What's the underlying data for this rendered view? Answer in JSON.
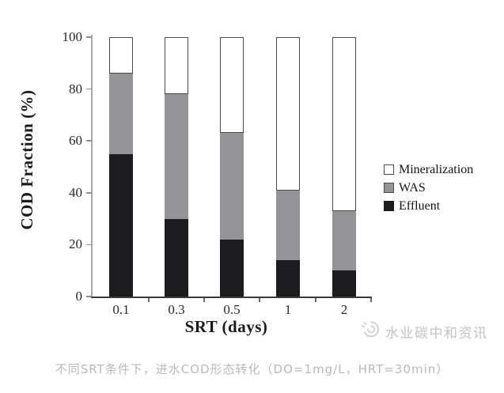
{
  "figure": {
    "background": "#ffffff"
  },
  "chart_data": {
    "type": "bar",
    "stacked": true,
    "title": "",
    "xlabel": "SRT (days)",
    "ylabel": "COD Fraction (%)",
    "categories": [
      "0.1",
      "0.3",
      "0.5",
      "1",
      "2"
    ],
    "series": [
      {
        "name": "Effluent",
        "color": "#1c1c1e",
        "values": [
          55,
          30,
          22,
          14,
          10
        ]
      },
      {
        "name": "WAS",
        "color": "#949497",
        "values": [
          31,
          48,
          41,
          27,
          23
        ]
      },
      {
        "name": "Mineralization",
        "color": "#ffffff",
        "values": [
          14,
          22,
          37,
          59,
          67
        ]
      }
    ],
    "ylim": [
      0,
      100
    ],
    "yticks": [
      0,
      20,
      40,
      60,
      80,
      100
    ],
    "grid": false,
    "legend_position": "right",
    "legend_order": [
      "Mineralization",
      "WAS",
      "Effluent"
    ],
    "bar_border_color": "#4a4a4c",
    "y_axis_color": "#a8a8a8",
    "x_axis_color": "#3a3a3a",
    "tick_color": "#8f8f8f",
    "tick_label_color": "#2a2a2a"
  },
  "watermark": {
    "icon": "swirl-logo-icon",
    "text": "水业碳中和资讯",
    "color": "#c8c8c8"
  },
  "caption": {
    "text": "不同SRT条件下，进水COD形态转化（DO=1mg/L，HRT=30min）",
    "color": "#b9b9b9"
  }
}
